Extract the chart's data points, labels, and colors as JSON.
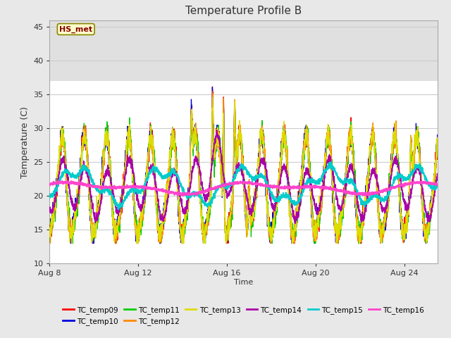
{
  "title": "Temperature Profile B",
  "xlabel": "Time",
  "ylabel": "Temperature (C)",
  "ylim": [
    10,
    46
  ],
  "yticks": [
    10,
    15,
    20,
    25,
    30,
    35,
    40,
    45
  ],
  "xtick_labels": [
    "Aug 8",
    "Aug 12",
    "Aug 16",
    "Aug 20",
    "Aug 24"
  ],
  "annotation_text": "HS_met",
  "annotation_color": "#880000",
  "annotation_bg": "#ffffcc",
  "annotation_border": "#888800",
  "series_colors": {
    "TC_temp09": "#ff0000",
    "TC_temp10": "#0000dd",
    "TC_temp11": "#00cc00",
    "TC_temp12": "#ff8800",
    "TC_temp13": "#dddd00",
    "TC_temp14": "#aa00aa",
    "TC_temp15": "#00cccc",
    "TC_temp16": "#ff44cc"
  },
  "figure_bg": "#e8e8e8",
  "plot_bg": "#ffffff",
  "grid_color": "#cccccc",
  "shaded_band": [
    37.0,
    46.0
  ],
  "shaded_band_color": "#e0e0e0",
  "n_days": 17.5
}
